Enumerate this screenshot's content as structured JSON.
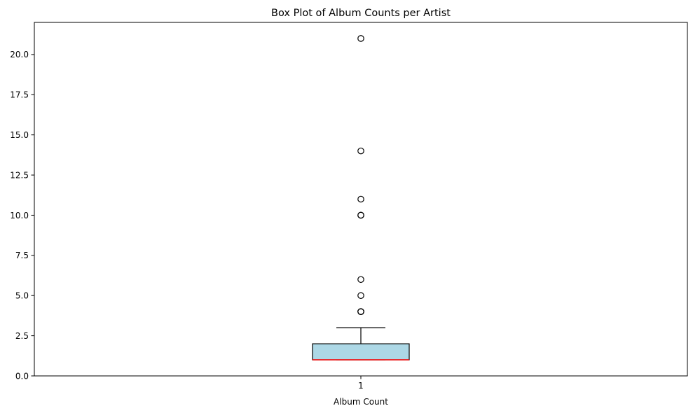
{
  "chart_data": {
    "type": "box",
    "title": "Box Plot of Album Counts per Artist",
    "xlabel": "Album Count",
    "ylabel": "",
    "categories": [
      "1"
    ],
    "ylim": [
      0,
      22
    ],
    "yticks": [
      0.0,
      2.5,
      5.0,
      7.5,
      10.0,
      12.5,
      15.0,
      17.5,
      20.0
    ],
    "ytick_labels": [
      "0.0",
      "2.5",
      "5.0",
      "7.5",
      "10.0",
      "12.5",
      "15.0",
      "17.5",
      "20.0"
    ],
    "grid": false,
    "legend": "none",
    "boxes": [
      {
        "category": "1",
        "whisker_low": 1,
        "q1": 1,
        "median": 1,
        "q3": 2,
        "whisker_high": 3,
        "outliers": [
          4,
          4,
          4,
          5,
          6,
          10,
          10,
          11,
          14,
          21
        ]
      }
    ],
    "colors": {
      "box_fill": "#add8e6",
      "box_edge": "#000000",
      "median": "#ff0000",
      "whisker": "#000000",
      "outlier_edge": "#000000"
    }
  }
}
